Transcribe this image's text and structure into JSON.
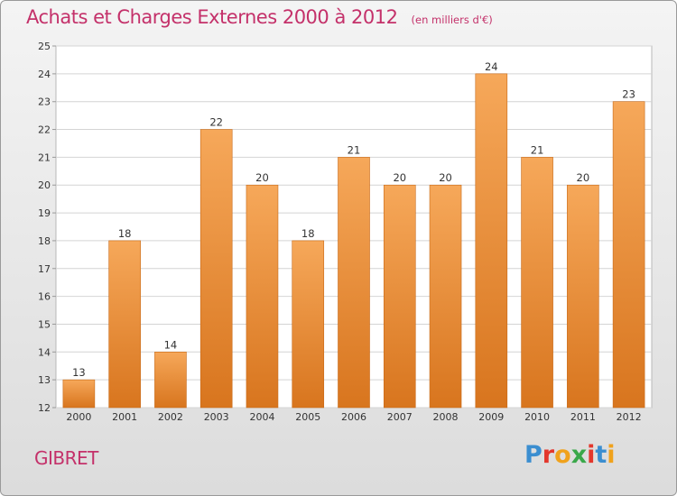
{
  "title": "Achats et Charges Externes 2000 à 2012",
  "subtitle": "(en milliers d'€)",
  "commune": "GIBRET",
  "logo": {
    "letters": [
      "P",
      "r",
      "o",
      "x",
      "i",
      "t",
      "i"
    ],
    "colors": [
      "#3b8ed0",
      "#e3372c",
      "#f0a21c",
      "#3aa84a",
      "#e3372c",
      "#3b8ed0",
      "#f0a21c"
    ]
  },
  "colors": {
    "bar": "#f2923a",
    "title": "#c4316a"
  },
  "chart_data": {
    "type": "bar",
    "categories": [
      "2000",
      "2001",
      "2002",
      "2003",
      "2004",
      "2005",
      "2006",
      "2007",
      "2008",
      "2009",
      "2010",
      "2011",
      "2012"
    ],
    "values": [
      13,
      18,
      14,
      22,
      20,
      18,
      21,
      20,
      20,
      24,
      21,
      20,
      23
    ],
    "ylim": [
      12,
      25
    ],
    "yticks": [
      12,
      13,
      14,
      15,
      16,
      17,
      18,
      19,
      20,
      21,
      22,
      23,
      24,
      25
    ],
    "grid": true
  }
}
